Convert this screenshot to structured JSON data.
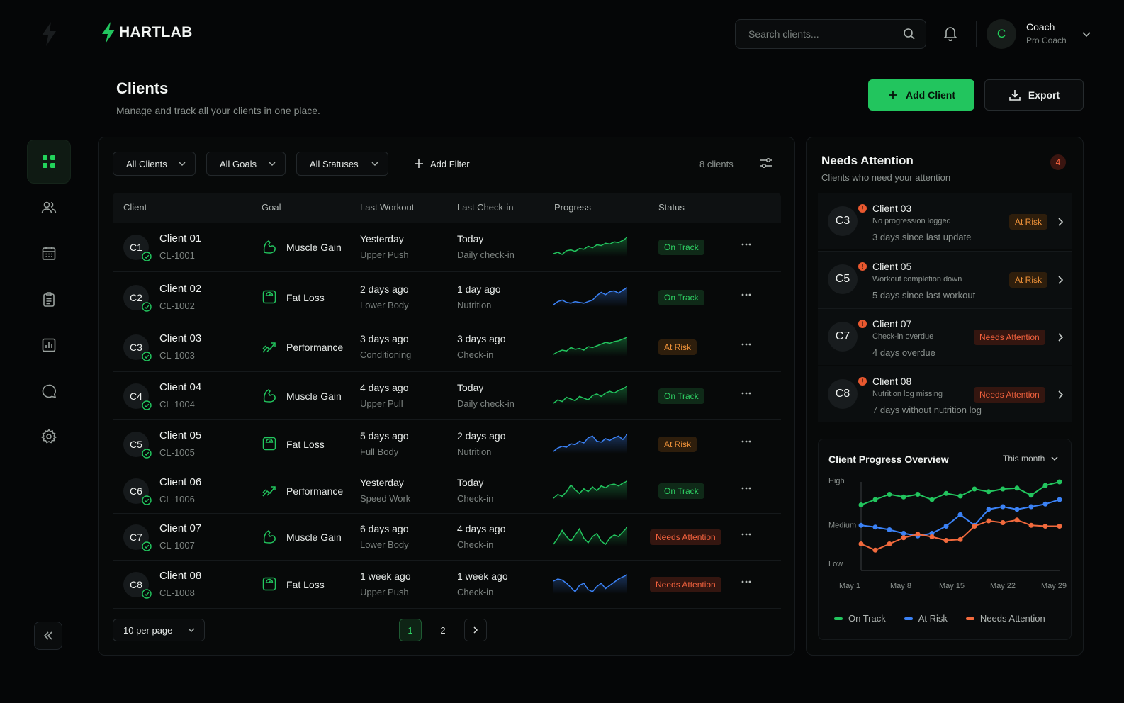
{
  "brand": {
    "name": "HARTLAB"
  },
  "search": {
    "placeholder": "Search clients..."
  },
  "user": {
    "initial": "C",
    "name": "Coach",
    "role": "Pro Coach"
  },
  "page": {
    "title": "Clients",
    "subtitle": "Manage and track all your clients in one place."
  },
  "actions": {
    "add_client": "Add Client",
    "export": "Export"
  },
  "sidebar": {
    "items": [
      {
        "name": "dashboard",
        "icon": "grid-icon",
        "active": true
      },
      {
        "name": "clients",
        "icon": "users-icon",
        "active": false
      },
      {
        "name": "calendar",
        "icon": "calendar-icon",
        "active": false
      },
      {
        "name": "programs",
        "icon": "clipboard-icon",
        "active": false
      },
      {
        "name": "analytics",
        "icon": "bar-chart-icon",
        "active": false
      },
      {
        "name": "messages",
        "icon": "chat-icon",
        "active": false
      },
      {
        "name": "settings",
        "icon": "gear-icon",
        "active": false
      }
    ]
  },
  "filters": {
    "clients": "All Clients",
    "goals": "All Goals",
    "statuses": "All Statuses",
    "add_filter": "Add Filter",
    "count": "8 clients"
  },
  "table": {
    "headers": [
      "Client",
      "Goal",
      "Last Workout",
      "Last Check-in",
      "Progress",
      "Status"
    ],
    "rows": [
      {
        "initials": "C1",
        "name": "Client 01",
        "id": "CL-1001",
        "goal": "Muscle Gain",
        "goal_icon": "muscle-icon",
        "workout": "Yesterday",
        "workout_type": "Upper Push",
        "checkin": "Today",
        "checkin_type": "Daily check-in",
        "status": "On Track",
        "spark_color": "#22c55e",
        "spark": [
          20,
          22,
          19,
          24,
          25,
          23,
          27,
          26,
          30,
          28,
          32,
          31,
          34,
          33,
          36,
          35,
          38,
          42
        ]
      },
      {
        "initials": "C2",
        "name": "Client 02",
        "id": "CL-1002",
        "goal": "Fat Loss",
        "goal_icon": "scale-icon",
        "workout": "2 days ago",
        "workout_type": "Lower Body",
        "checkin": "1 day ago",
        "checkin_type": "Nutrition",
        "status": "On Track",
        "spark_color": "#3b82f6",
        "spark": [
          18,
          22,
          24,
          21,
          20,
          22,
          21,
          20,
          22,
          24,
          30,
          34,
          31,
          35,
          36,
          33,
          37,
          40
        ]
      },
      {
        "initials": "C3",
        "name": "Client 03",
        "id": "CL-1003",
        "goal": "Performance",
        "goal_icon": "performance-icon",
        "workout": "3 days ago",
        "workout_type": "Conditioning",
        "checkin": "3 days ago",
        "checkin_type": "Check-in",
        "status": "At Risk",
        "spark_color": "#22c55e",
        "spark": [
          20,
          23,
          25,
          24,
          28,
          26,
          27,
          25,
          29,
          28,
          30,
          32,
          34,
          33,
          35,
          36,
          38,
          40
        ]
      },
      {
        "initials": "C4",
        "name": "Client 04",
        "id": "CL-1004",
        "goal": "Muscle Gain",
        "goal_icon": "muscle-icon",
        "workout": "4 days ago",
        "workout_type": "Upper Pull",
        "checkin": "Today",
        "checkin_type": "Daily check-in",
        "status": "On Track",
        "spark_color": "#22c55e",
        "spark": [
          22,
          26,
          24,
          29,
          27,
          25,
          30,
          28,
          26,
          31,
          33,
          30,
          34,
          36,
          34,
          37,
          39,
          42
        ]
      },
      {
        "initials": "C5",
        "name": "Client 05",
        "id": "CL-1005",
        "goal": "Fat Loss",
        "goal_icon": "scale-icon",
        "workout": "5 days ago",
        "workout_type": "Full Body",
        "checkin": "2 days ago",
        "checkin_type": "Nutrition",
        "status": "At Risk",
        "spark_color": "#3b82f6",
        "spark": [
          20,
          24,
          26,
          25,
          29,
          28,
          32,
          30,
          36,
          38,
          32,
          31,
          35,
          33,
          36,
          38,
          34,
          40
        ]
      },
      {
        "initials": "C6",
        "name": "Client 06",
        "id": "CL-1006",
        "goal": "Performance",
        "goal_icon": "performance-icon",
        "workout": "Yesterday",
        "workout_type": "Speed Work",
        "checkin": "Today",
        "checkin_type": "Check-in",
        "status": "On Track",
        "spark_color": "#22c55e",
        "spark": [
          20,
          24,
          22,
          27,
          34,
          29,
          25,
          30,
          27,
          32,
          28,
          33,
          31,
          34,
          35,
          33,
          36,
          38
        ]
      },
      {
        "initials": "C7",
        "name": "Client 07",
        "id": "CL-1007",
        "goal": "Muscle Gain",
        "goal_icon": "muscle-icon",
        "workout": "6 days ago",
        "workout_type": "Lower Body",
        "checkin": "4 days ago",
        "checkin_type": "Check-in",
        "status": "Needs Attention",
        "spark_color": "#22c55e",
        "spark": [
          26,
          30,
          35,
          31,
          28,
          32,
          36,
          30,
          27,
          31,
          33,
          28,
          26,
          30,
          32,
          31,
          34,
          37
        ]
      },
      {
        "initials": "C8",
        "name": "Client 08",
        "id": "CL-1008",
        "goal": "Fat Loss",
        "goal_icon": "scale-icon",
        "workout": "1 week ago",
        "workout_type": "Upper Push",
        "checkin": "1 week ago",
        "checkin_type": "Check-in",
        "status": "Needs Attention",
        "spark_color": "#3b82f6",
        "spark": [
          32,
          34,
          33,
          30,
          26,
          22,
          28,
          30,
          24,
          22,
          27,
          30,
          25,
          28,
          31,
          34,
          36,
          38
        ]
      }
    ]
  },
  "pagination": {
    "per_page": "10 per page",
    "pages": [
      "1",
      "2"
    ],
    "current": "1"
  },
  "needs_attention": {
    "title": "Needs Attention",
    "subtitle": "Clients who need your attention",
    "count": "4",
    "items": [
      {
        "initials": "C3",
        "name": "Client 03",
        "reason": "No progression logged",
        "time": "3 days since last update",
        "status": "At Risk"
      },
      {
        "initials": "C5",
        "name": "Client 05",
        "reason": "Workout completion down",
        "time": "5 days since last workout",
        "status": "At Risk"
      },
      {
        "initials": "C7",
        "name": "Client 07",
        "reason": "Check-in overdue",
        "time": "4 days overdue",
        "status": "Needs Attention"
      },
      {
        "initials": "C8",
        "name": "Client 08",
        "reason": "Nutrition log missing",
        "time": "7 days without nutrition log",
        "status": "Needs Attention"
      }
    ]
  },
  "overview": {
    "title": "Client Progress Overview",
    "range": "This month",
    "y_labels": [
      "High",
      "Medium",
      "Low"
    ],
    "x_labels": [
      "May 1",
      "May 8",
      "May 15",
      "May 22",
      "May 29"
    ]
  },
  "colors": {
    "accent": "#22c55e",
    "on_track": "#22c55e",
    "at_risk": "#3b82f6",
    "needs_attention": "#f26a3d",
    "at_risk_badge": "#f2943a"
  },
  "chart_data": {
    "type": "line",
    "title": "Client Progress Overview",
    "x": [
      "May 1",
      "May 3",
      "May 5",
      "May 7",
      "May 9",
      "May 11",
      "May 13",
      "May 15",
      "May 17",
      "May 19",
      "May 21",
      "May 23",
      "May 25",
      "May 27",
      "May 29"
    ],
    "x_ticks": [
      "May 1",
      "May 8",
      "May 15",
      "May 22",
      "May 29"
    ],
    "y_ticks": [
      "Low",
      "Medium",
      "High"
    ],
    "ylim": [
      0,
      100
    ],
    "series": [
      {
        "name": "On Track",
        "color": "#22c55e",
        "values": [
          74,
          80,
          86,
          83,
          86,
          80,
          87,
          84,
          92,
          89,
          92,
          93,
          85,
          96,
          100
        ]
      },
      {
        "name": "At Risk",
        "color": "#3b82f6",
        "values": [
          51,
          49,
          46,
          42,
          39,
          42,
          50,
          63,
          51,
          69,
          72,
          69,
          72,
          75,
          80
        ]
      },
      {
        "name": "Needs Attention",
        "color": "#f26a3d",
        "values": [
          30,
          23,
          30,
          37,
          41,
          38,
          34,
          35,
          50,
          56,
          54,
          57,
          51,
          50,
          50
        ]
      }
    ],
    "legend": "bottom",
    "grid": false
  }
}
